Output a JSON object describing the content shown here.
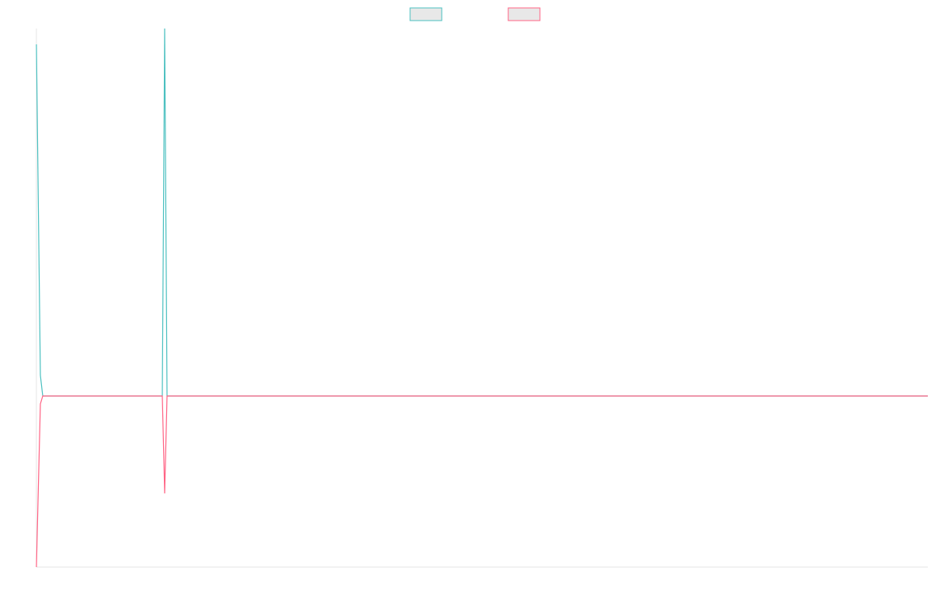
{
  "chart_data": {
    "type": "line",
    "x": [
      0,
      5,
      8,
      159,
      162,
      165,
      1126
    ],
    "xlim": [
      0,
      1126
    ],
    "ylim": [
      -216,
      464
    ],
    "series": [
      {
        "color": "#4bc0c0",
        "values": [
          444,
          26,
          0,
          0,
          464,
          0,
          0
        ]
      },
      {
        "color": "#ff6384",
        "values": [
          -216,
          -10,
          0,
          0,
          -123,
          0,
          0
        ]
      }
    ]
  }
}
